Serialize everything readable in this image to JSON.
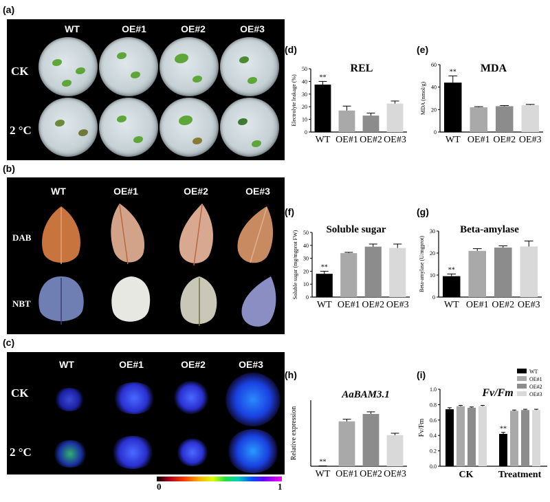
{
  "panel_labels": {
    "a": "(a)",
    "b": "(b)",
    "c": "(c)",
    "d": "(d)",
    "e": "(e)",
    "f": "(f)",
    "g": "(g)",
    "h": "(h)",
    "i": "(i)"
  },
  "genotypes": [
    "WT",
    "OE#1",
    "OE#2",
    "OE#3"
  ],
  "panel_a": {
    "rows": [
      "CK",
      "2 °C"
    ]
  },
  "panel_b": {
    "rows": [
      "DAB",
      "NBT"
    ]
  },
  "panel_c": {
    "rows": [
      "CK",
      "2 °C"
    ],
    "colorbar_min": "0",
    "colorbar_max": "1"
  },
  "colors": {
    "WT": "#000000",
    "OE#1": "#a9a9a9",
    "OE#2": "#8c8c8c",
    "OE#3": "#d9d9d9"
  },
  "chart_data": [
    {
      "id": "d",
      "type": "bar",
      "title": "REL",
      "ylabel": "Electrolyte leakage (%)",
      "ylim": [
        0,
        50
      ],
      "ticks": [
        0,
        10,
        20,
        30,
        40,
        50
      ],
      "categories": [
        "WT",
        "OE#1",
        "OE#2",
        "OE#3"
      ],
      "values": [
        37.5,
        17,
        13,
        22.5
      ],
      "errors": [
        2.5,
        3.5,
        2,
        2
      ],
      "annotations": [
        "**",
        "",
        "",
        ""
      ]
    },
    {
      "id": "e",
      "type": "bar",
      "title": "MDA",
      "ylabel": "MDA (nmol/g)",
      "ylim": [
        0,
        60
      ],
      "ticks": [
        0,
        20,
        40,
        60
      ],
      "categories": [
        "WT",
        "OE#1",
        "OE#2",
        "OE#3"
      ],
      "values": [
        44,
        22,
        23,
        24
      ],
      "errors": [
        6,
        0.6,
        0.6,
        0.6
      ],
      "annotations": [
        "**",
        "",
        "",
        ""
      ]
    },
    {
      "id": "f",
      "type": "bar",
      "title": "Soluble sugar",
      "ylabel": "Soluble sugar (mg/mgprot FW)",
      "ylim": [
        0,
        50
      ],
      "ticks": [
        0,
        10,
        20,
        30,
        40,
        50
      ],
      "categories": [
        "WT",
        "OE#1",
        "OE#2",
        "OE#3"
      ],
      "values": [
        18,
        34,
        39,
        38
      ],
      "errors": [
        2,
        0.6,
        2,
        3
      ],
      "annotations": [
        "**",
        "",
        "",
        ""
      ]
    },
    {
      "id": "g",
      "type": "bar",
      "title": "Beta-amylase",
      "ylabel": "Beta-amylase (U/mgprot)",
      "ylim": [
        0,
        30
      ],
      "ticks": [
        0,
        10,
        20,
        30
      ],
      "categories": [
        "WT",
        "OE#1",
        "OE#2",
        "OE#3"
      ],
      "values": [
        9.5,
        21,
        22.5,
        23
      ],
      "errors": [
        1,
        1,
        0.8,
        2.5
      ],
      "annotations": [
        "**",
        "",
        "",
        ""
      ]
    },
    {
      "id": "h",
      "type": "bar",
      "title": "AaBAM3.1",
      "ylabel": "Relative expression",
      "ylim": [
        0,
        250
      ],
      "ticks": [],
      "categories": [
        "WT",
        "OE#1",
        "OE#2",
        "OE#3"
      ],
      "values": [
        1,
        170,
        198,
        118
      ],
      "errors": [
        0.5,
        8,
        8,
        7
      ],
      "annotations": [
        "**",
        "",
        "",
        ""
      ]
    },
    {
      "id": "i",
      "type": "bar",
      "title": "Fv/Fm",
      "ylabel": "Fv/Fm",
      "ylim": [
        0,
        1.0
      ],
      "ticks": [
        0.0,
        0.2,
        0.4,
        0.6,
        0.8,
        1.0
      ],
      "categories": [
        "CK",
        "Treatment"
      ],
      "series": [
        {
          "name": "WT",
          "values": [
            0.74,
            0.42
          ],
          "errors": [
            0.02,
            0.02
          ]
        },
        {
          "name": "OE#1",
          "values": [
            0.78,
            0.72
          ],
          "errors": [
            0.01,
            0.01
          ]
        },
        {
          "name": "OE#2",
          "values": [
            0.76,
            0.73
          ],
          "errors": [
            0.01,
            0.01
          ]
        },
        {
          "name": "OE#3",
          "values": [
            0.78,
            0.73
          ],
          "errors": [
            0.01,
            0.01
          ]
        }
      ],
      "annotations": [
        {
          "series": "WT",
          "category": "Treatment",
          "text": "**"
        }
      ],
      "legend": "top-right"
    }
  ]
}
